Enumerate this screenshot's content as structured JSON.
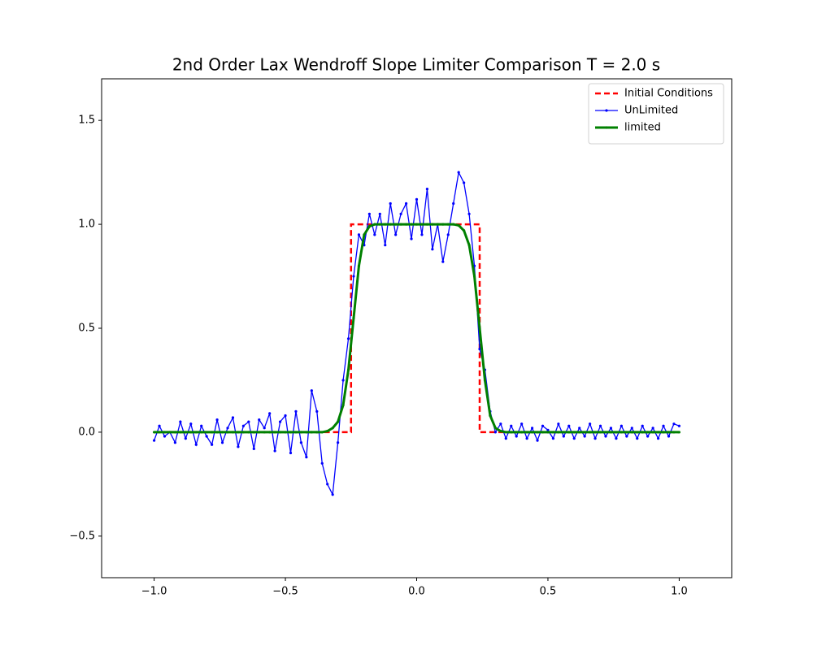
{
  "chart_data": {
    "type": "line",
    "title": "2nd Order Lax Wendroff Slope Limiter Comparison T = 2.0 s",
    "xlim": [
      -1.2,
      1.2
    ],
    "ylim": [
      -0.7,
      1.7
    ],
    "xticks": [
      {
        "value": -1.0,
        "label": "−1.0"
      },
      {
        "value": -0.5,
        "label": "−0.5"
      },
      {
        "value": 0,
        "label": "0.0"
      },
      {
        "value": 0.5,
        "label": "0.5"
      },
      {
        "value": 1.0,
        "label": "1.0"
      }
    ],
    "yticks": [
      {
        "value": -0.5,
        "label": "−0.5"
      },
      {
        "value": 0,
        "label": "0.0"
      },
      {
        "value": 0.5,
        "label": "0.5"
      },
      {
        "value": 1.0,
        "label": "1.0"
      },
      {
        "value": 1.5,
        "label": "1.5"
      }
    ],
    "grid": false,
    "legend": "upper right",
    "series": [
      {
        "name": "Initial Conditions",
        "color": "#ff0000",
        "linestyle": "dashed",
        "markers": false,
        "x": [
          -1.0,
          -0.25,
          -0.25,
          0.24,
          0.24,
          1.0
        ],
        "values": [
          0,
          0,
          1,
          1,
          0,
          0
        ]
      },
      {
        "name": "UnLimited",
        "color": "#0000ff",
        "linestyle": "solid",
        "markers": true,
        "x": [
          -1.0,
          -0.98,
          -0.96,
          -0.94,
          -0.92,
          -0.9,
          -0.88,
          -0.86,
          -0.84,
          -0.82,
          -0.8,
          -0.78,
          -0.76,
          -0.74,
          -0.72,
          -0.7,
          -0.68,
          -0.66,
          -0.64,
          -0.62,
          -0.6,
          -0.58,
          -0.56,
          -0.54,
          -0.52,
          -0.5,
          -0.48,
          -0.46,
          -0.44,
          -0.42,
          -0.4,
          -0.38,
          -0.36,
          -0.34,
          -0.32,
          -0.3,
          -0.28,
          -0.26,
          -0.24,
          -0.22,
          -0.2,
          -0.18,
          -0.16,
          -0.14,
          -0.12,
          -0.1,
          -0.08,
          -0.06,
          -0.04,
          -0.02,
          0.0,
          0.02,
          0.04,
          0.06,
          0.08,
          0.1,
          0.12,
          0.14,
          0.16,
          0.18,
          0.2,
          0.22,
          0.24,
          0.26,
          0.28,
          0.3,
          0.32,
          0.34,
          0.36,
          0.38,
          0.4,
          0.42,
          0.44,
          0.46,
          0.48,
          0.5,
          0.52,
          0.54,
          0.56,
          0.58,
          0.6,
          0.62,
          0.64,
          0.66,
          0.68,
          0.7,
          0.72,
          0.74,
          0.76,
          0.78,
          0.8,
          0.82,
          0.84,
          0.86,
          0.88,
          0.9,
          0.92,
          0.94,
          0.96,
          0.98,
          1.0
        ],
        "values": [
          -0.04,
          0.03,
          -0.02,
          0.0,
          -0.05,
          0.05,
          -0.03,
          0.04,
          -0.06,
          0.03,
          -0.02,
          -0.06,
          0.06,
          -0.05,
          0.02,
          0.07,
          -0.07,
          0.03,
          0.05,
          -0.08,
          0.06,
          0.02,
          0.09,
          -0.09,
          0.05,
          0.08,
          -0.1,
          0.1,
          -0.05,
          -0.12,
          0.2,
          0.1,
          -0.15,
          -0.25,
          -0.3,
          -0.05,
          0.25,
          0.45,
          0.75,
          0.95,
          0.9,
          1.05,
          0.95,
          1.05,
          0.9,
          1.1,
          0.95,
          1.05,
          1.1,
          0.93,
          1.12,
          0.95,
          1.17,
          0.88,
          1.0,
          0.82,
          0.95,
          1.1,
          1.25,
          1.2,
          1.05,
          0.8,
          0.4,
          0.3,
          0.1,
          0.0,
          0.04,
          -0.03,
          0.03,
          -0.02,
          0.04,
          -0.03,
          0.02,
          -0.04,
          0.03,
          0.01,
          -0.03,
          0.04,
          -0.02,
          0.03,
          -0.03,
          0.02,
          -0.02,
          0.04,
          -0.03,
          0.03,
          -0.02,
          0.02,
          -0.03,
          0.03,
          -0.02,
          0.02,
          -0.03,
          0.03,
          -0.02,
          0.02,
          -0.03,
          0.03,
          -0.02,
          0.04,
          0.03
        ]
      },
      {
        "name": "limited",
        "color": "#008000",
        "linestyle": "solid",
        "markers": true,
        "x": [
          -1.0,
          -0.98,
          -0.96,
          -0.94,
          -0.92,
          -0.9,
          -0.88,
          -0.86,
          -0.84,
          -0.82,
          -0.8,
          -0.78,
          -0.76,
          -0.74,
          -0.72,
          -0.7,
          -0.68,
          -0.66,
          -0.64,
          -0.62,
          -0.6,
          -0.58,
          -0.56,
          -0.54,
          -0.52,
          -0.5,
          -0.48,
          -0.46,
          -0.44,
          -0.42,
          -0.4,
          -0.38,
          -0.36,
          -0.34,
          -0.32,
          -0.3,
          -0.28,
          -0.26,
          -0.24,
          -0.22,
          -0.2,
          -0.18,
          -0.16,
          -0.14,
          -0.12,
          -0.1,
          -0.08,
          -0.06,
          -0.04,
          -0.02,
          0.0,
          0.02,
          0.04,
          0.06,
          0.08,
          0.1,
          0.12,
          0.14,
          0.16,
          0.18,
          0.2,
          0.22,
          0.24,
          0.26,
          0.28,
          0.3,
          0.32,
          0.34,
          0.36,
          0.38,
          0.4,
          0.42,
          0.44,
          0.46,
          0.48,
          0.5,
          0.52,
          0.54,
          0.56,
          0.58,
          0.6,
          0.62,
          0.64,
          0.66,
          0.68,
          0.7,
          0.72,
          0.74,
          0.76,
          0.78,
          0.8,
          0.82,
          0.84,
          0.86,
          0.88,
          0.9,
          0.92,
          0.94,
          0.96,
          0.98,
          1.0
        ],
        "values": [
          0,
          0,
          0,
          0,
          0,
          0,
          0,
          0,
          0,
          0,
          0,
          0,
          0,
          0,
          0,
          0,
          0,
          0,
          0,
          0,
          0,
          0,
          0,
          0,
          0,
          0,
          0,
          0,
          0,
          0,
          0,
          0,
          0,
          0.005,
          0.02,
          0.05,
          0.13,
          0.3,
          0.55,
          0.8,
          0.95,
          0.99,
          1,
          1,
          1,
          1,
          1,
          1,
          1,
          1,
          1,
          1,
          1,
          1,
          1,
          1,
          1,
          1,
          0.995,
          0.97,
          0.9,
          0.75,
          0.5,
          0.25,
          0.08,
          0.02,
          0.005,
          0,
          0,
          0,
          0,
          0,
          0,
          0,
          0,
          0,
          0,
          0,
          0,
          0,
          0,
          0,
          0,
          0,
          0,
          0,
          0,
          0,
          0,
          0,
          0,
          0,
          0,
          0,
          0,
          0,
          0,
          0,
          0,
          0,
          0
        ]
      }
    ]
  }
}
